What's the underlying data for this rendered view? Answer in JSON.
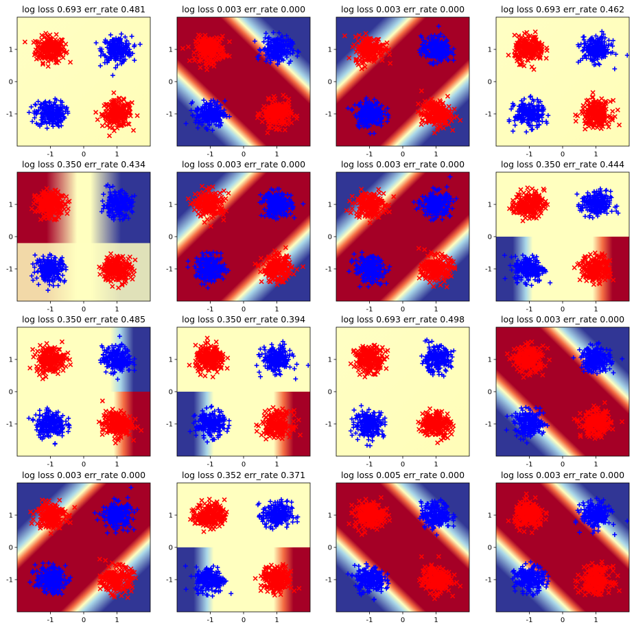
{
  "figure": {
    "colormap": "RdYlBu (red = class x, blue = class +)",
    "class_colors": {
      "x": "#ff0000",
      "plus": "#0000ff"
    },
    "grid": "4x4"
  },
  "chart_data": [
    {
      "type": "scatter",
      "title": "log loss 0.693  err_rate 0.481",
      "surface": "flat",
      "xlim": [
        -2,
        2
      ],
      "ylim": [
        -2,
        2
      ],
      "xticks": [
        "-1",
        "0",
        "1"
      ],
      "yticks": [
        "1",
        "0",
        "-1"
      ],
      "grid": false
    },
    {
      "type": "scatter",
      "title": "log loss 0.003  err_rate 0.000",
      "surface": "band-diag-up",
      "xlim": [
        -2,
        2
      ],
      "ylim": [
        -2,
        2
      ],
      "xticks": [
        "-1",
        "0",
        "1"
      ],
      "yticks": [
        "1",
        "0",
        "-1"
      ],
      "grid": false
    },
    {
      "type": "scatter",
      "title": "log loss 0.003  err_rate 0.000",
      "surface": "band-diag-down",
      "xlim": [
        -2,
        2
      ],
      "ylim": [
        -2,
        2
      ],
      "xticks": [
        "-1",
        "0",
        "1"
      ],
      "yticks": [
        "1",
        "0",
        "-1"
      ],
      "grid": false
    },
    {
      "type": "scatter",
      "title": "log loss 0.693  err_rate 0.462",
      "surface": "flat",
      "xlim": [
        -2,
        2
      ],
      "ylim": [
        -2,
        2
      ],
      "xticks": [
        "-1",
        "0",
        "1"
      ],
      "yticks": [
        "1",
        "0",
        "-1"
      ],
      "grid": false
    },
    {
      "type": "scatter",
      "title": "log loss 0.350  err_rate 0.434",
      "surface": "half-left-red",
      "xlim": [
        -2,
        2
      ],
      "ylim": [
        -2,
        2
      ],
      "xticks": [
        "-1",
        "0",
        "1"
      ],
      "yticks": [
        "1",
        "0",
        "-1"
      ],
      "grid": false
    },
    {
      "type": "scatter",
      "title": "log loss 0.003  err_rate 0.000",
      "surface": "band-diag-down",
      "xlim": [
        -2,
        2
      ],
      "ylim": [
        -2,
        2
      ],
      "xticks": [
        "-1",
        "0",
        "1"
      ],
      "yticks": [
        "1",
        "0",
        "-1"
      ],
      "grid": false
    },
    {
      "type": "scatter",
      "title": "log loss 0.003  err_rate 0.000",
      "surface": "band-diag-down",
      "xlim": [
        -2,
        2
      ],
      "ylim": [
        -2,
        2
      ],
      "xticks": [
        "-1",
        "0",
        "1"
      ],
      "yticks": [
        "1",
        "0",
        "-1"
      ],
      "grid": false
    },
    {
      "type": "scatter",
      "title": "log loss 0.350  err_rate 0.444",
      "surface": "half-bottom-split",
      "xlim": [
        -2,
        2
      ],
      "ylim": [
        -2,
        2
      ],
      "xticks": [
        "-1",
        "0",
        "1"
      ],
      "yticks": [
        "1",
        "0",
        "-1"
      ],
      "grid": false
    },
    {
      "type": "scatter",
      "title": "log loss 0.350  err_rate 0.485",
      "surface": "half-right-split",
      "xlim": [
        -2,
        2
      ],
      "ylim": [
        -2,
        2
      ],
      "xticks": [
        "-1",
        "0",
        "1"
      ],
      "yticks": [
        "1",
        "0",
        "-1"
      ],
      "grid": false
    },
    {
      "type": "scatter",
      "title": "log loss 0.350  err_rate 0.394",
      "surface": "half-bottom-split",
      "xlim": [
        -2,
        2
      ],
      "ylim": [
        -2,
        2
      ],
      "xticks": [
        "-1",
        "0",
        "1"
      ],
      "yticks": [
        "1",
        "0",
        "-1"
      ],
      "grid": false
    },
    {
      "type": "scatter",
      "title": "log loss 0.693  err_rate 0.498",
      "surface": "flat",
      "xlim": [
        -2,
        2
      ],
      "ylim": [
        -2,
        2
      ],
      "xticks": [
        "-1",
        "0",
        "1"
      ],
      "yticks": [
        "1",
        "0",
        "-1"
      ],
      "grid": false
    },
    {
      "type": "scatter",
      "title": "log loss 0.003  err_rate 0.000",
      "surface": "band-diag-up",
      "xlim": [
        -2,
        2
      ],
      "ylim": [
        -2,
        2
      ],
      "xticks": [
        "-1",
        "0",
        "1"
      ],
      "yticks": [
        "1",
        "0",
        "-1"
      ],
      "grid": false
    },
    {
      "type": "scatter",
      "title": "log loss 0.003  err_rate 0.000",
      "surface": "band-diag-down",
      "xlim": [
        -2,
        2
      ],
      "ylim": [
        -2,
        2
      ],
      "xticks": [
        "-1",
        "0",
        "1"
      ],
      "yticks": [
        "1",
        "0",
        "-1"
      ],
      "grid": false
    },
    {
      "type": "scatter",
      "title": "log loss 0.352  err_rate 0.371",
      "surface": "half-bottom-split",
      "xlim": [
        -2,
        2
      ],
      "ylim": [
        -2,
        2
      ],
      "xticks": [
        "-1",
        "0",
        "1"
      ],
      "yticks": [
        "1",
        "0",
        "-1"
      ],
      "grid": false
    },
    {
      "type": "scatter",
      "title": "log loss 0.005  err_rate 0.000",
      "surface": "band-diag-up",
      "xlim": [
        -2,
        2
      ],
      "ylim": [
        -2,
        2
      ],
      "xticks": [
        "-1",
        "0",
        "1"
      ],
      "yticks": [
        "1",
        "0",
        "-1"
      ],
      "grid": false
    },
    {
      "type": "scatter",
      "title": "log loss 0.003  err_rate 0.000",
      "surface": "band-diag-up",
      "xlim": [
        -2,
        2
      ],
      "ylim": [
        -2,
        2
      ],
      "xticks": [
        "-1",
        "0",
        "1"
      ],
      "yticks": [
        "1",
        "0",
        "-1"
      ],
      "grid": false
    }
  ]
}
